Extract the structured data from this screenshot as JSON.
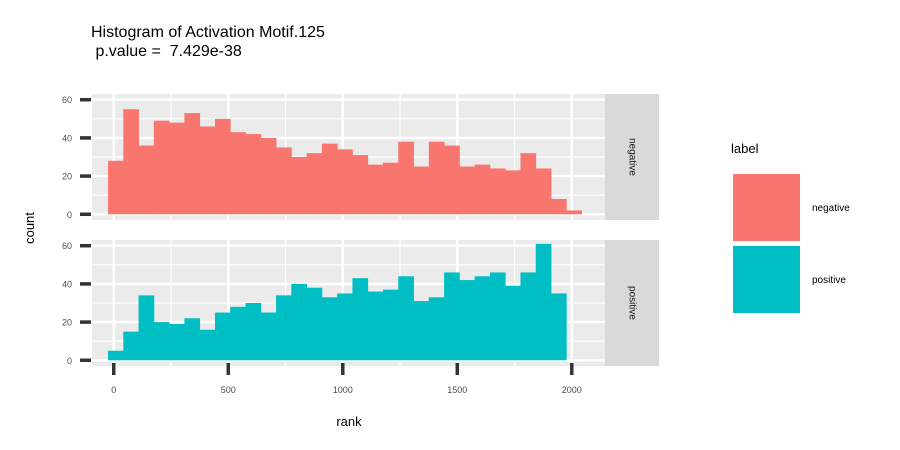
{
  "chart_data": {
    "type": "bar",
    "title": "Histogram of Activation Motif.125",
    "subtitle": " p.value =  7.429e-38",
    "xlabel": "rank",
    "ylabel": "count",
    "xlim": [
      -95,
      2145
    ],
    "ylim": [
      -3,
      63
    ],
    "x_ticks": [
      0,
      500,
      1000,
      1500,
      2000
    ],
    "y_ticks": [
      0,
      20,
      40,
      60
    ],
    "bin_start": -25,
    "bin_width": 66.7,
    "legend": {
      "title": "label",
      "position": "right",
      "entries": [
        {
          "label": "negative",
          "color": "#F8766D"
        },
        {
          "label": "positive",
          "color": "#00BFC4"
        }
      ]
    },
    "panels": [
      {
        "strip": "negative",
        "color": "#F8766D",
        "values": [
          28,
          55,
          36,
          49,
          48,
          53,
          46,
          50,
          43,
          42,
          40,
          35,
          30,
          32,
          37,
          34,
          31,
          26,
          27,
          38,
          25,
          38,
          36,
          25,
          26,
          24,
          23,
          32,
          24,
          8,
          2
        ]
      },
      {
        "strip": "positive",
        "color": "#00BFC4",
        "values": [
          5,
          15,
          34,
          20,
          19,
          22,
          16,
          25,
          28,
          30,
          25,
          34,
          40,
          38,
          33,
          35,
          43,
          36,
          37,
          44,
          31,
          33,
          46,
          42,
          44,
          46,
          39,
          46,
          61,
          35
        ]
      }
    ]
  }
}
